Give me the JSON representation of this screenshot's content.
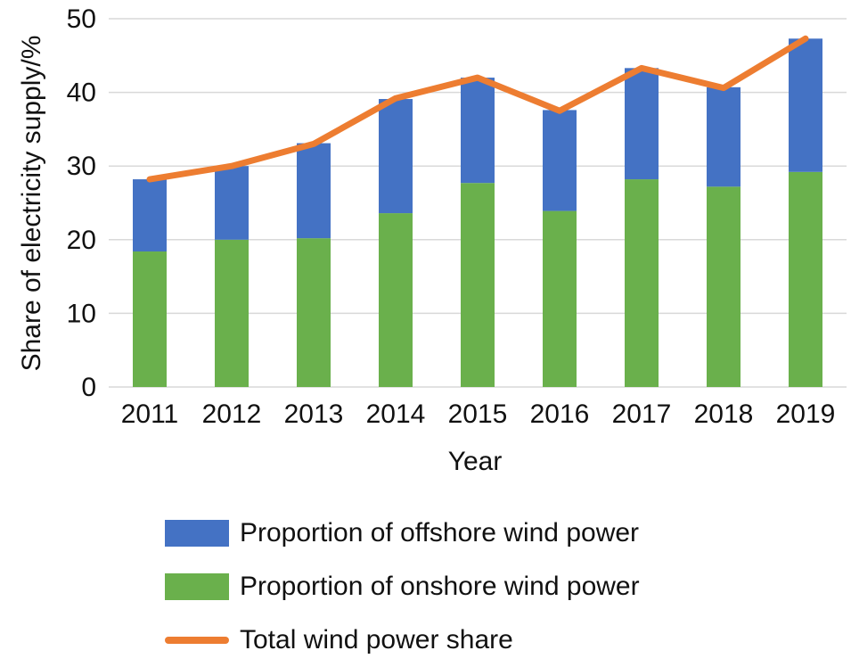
{
  "chart_data": {
    "type": "bar",
    "stacked": true,
    "title": "",
    "xlabel": "Year",
    "ylabel": "Share of electricity supply/%",
    "ylim": [
      0,
      50
    ],
    "yticks": [
      0,
      10,
      20,
      30,
      40,
      50
    ],
    "grid": true,
    "categories": [
      "2011",
      "2012",
      "2013",
      "2014",
      "2015",
      "2016",
      "2017",
      "2018",
      "2019"
    ],
    "series": [
      {
        "name": "Proportion of onshore wind power",
        "kind": "bar",
        "color": "#6ab04c",
        "values": [
          18.4,
          20.0,
          20.2,
          23.6,
          27.7,
          23.9,
          28.2,
          27.2,
          29.2
        ]
      },
      {
        "name": "Proportion of offshore wind power",
        "kind": "bar",
        "color": "#4472c4",
        "values": [
          9.8,
          10.0,
          12.9,
          15.5,
          14.3,
          13.7,
          15.1,
          13.5,
          18.1
        ]
      },
      {
        "name": "Total wind power share",
        "kind": "line",
        "color": "#ed7d31",
        "values": [
          28.2,
          30.0,
          33.0,
          39.2,
          42.0,
          37.5,
          43.3,
          40.6,
          47.3
        ]
      }
    ],
    "legend_position": "bottom"
  }
}
